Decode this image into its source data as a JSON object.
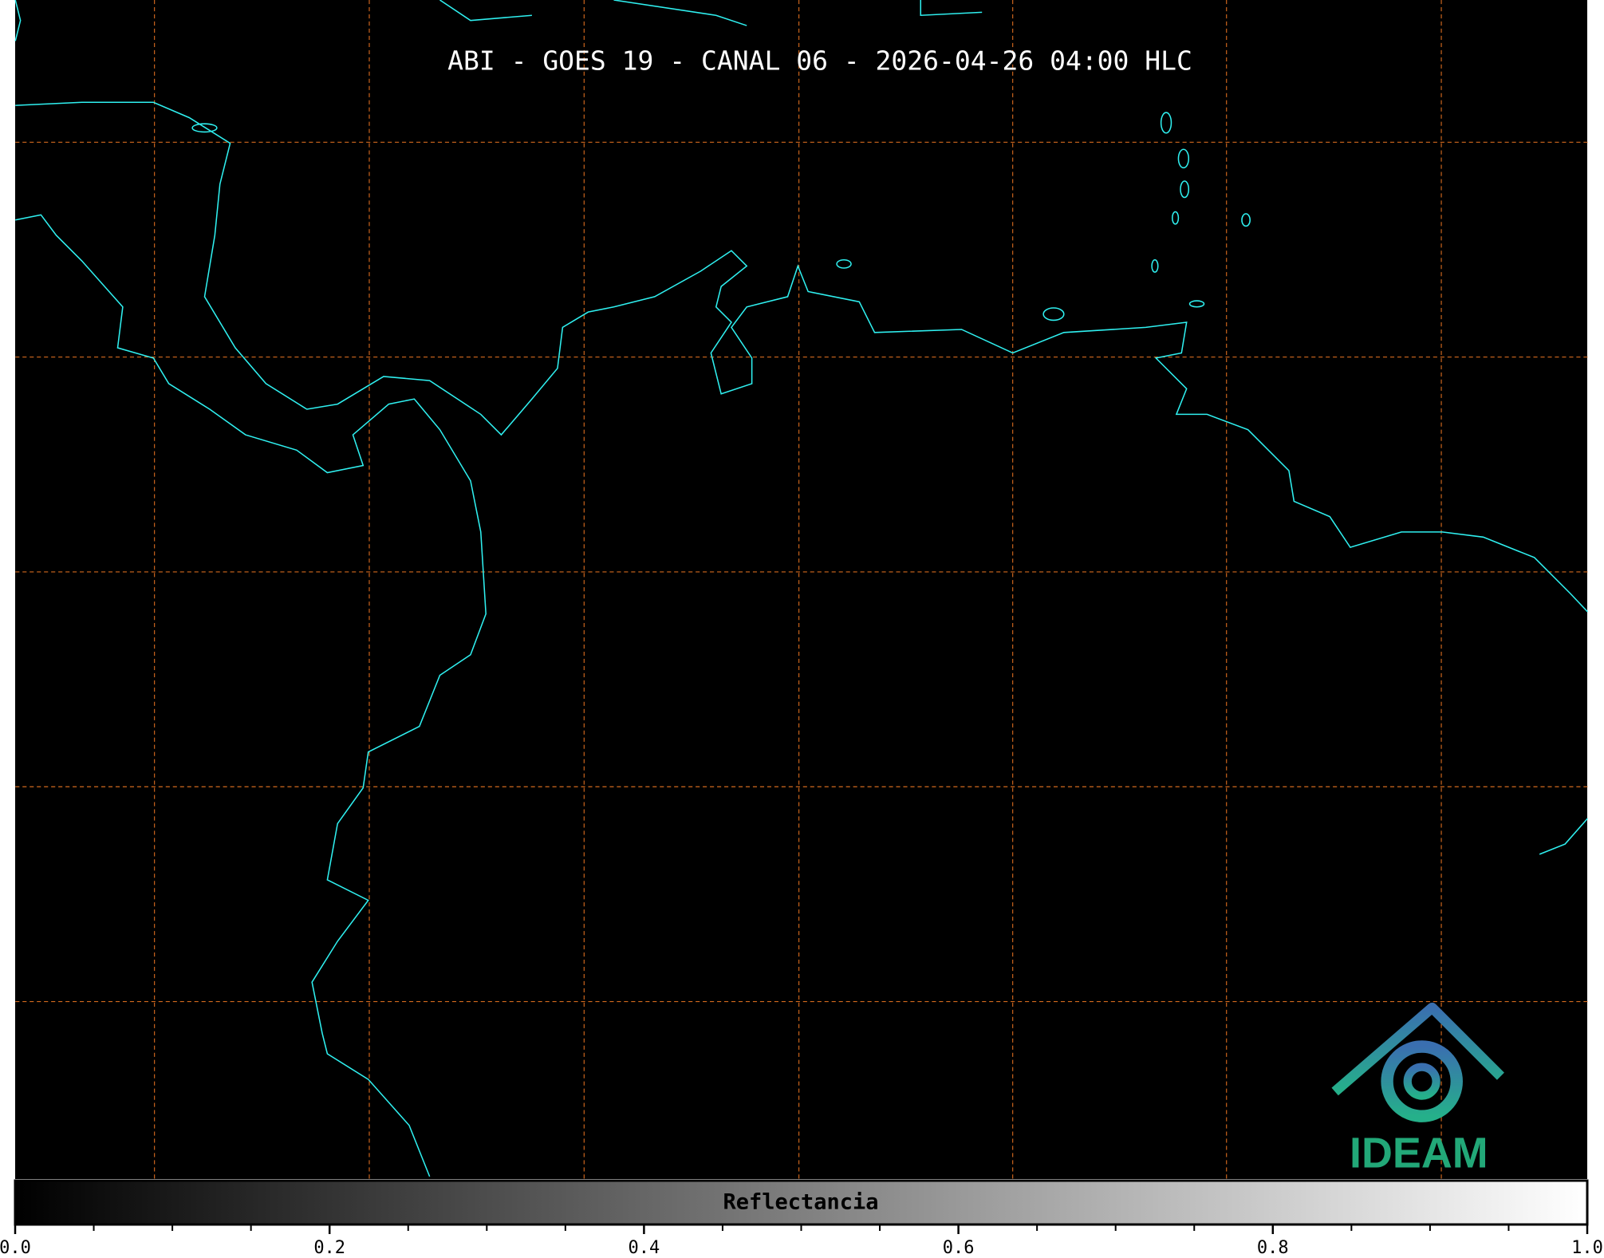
{
  "title": "ABI - GOES 19 - CANAL 06 - 2026-04-26 04:00 HLC",
  "colorbar": {
    "label": "Reflectancia",
    "lim": [
      0,
      1
    ],
    "ticks": [
      {
        "value": 0,
        "label": "0.0"
      },
      0.2,
      0.4,
      0.6,
      0.8,
      {
        "value": 1,
        "label": "1.0"
      }
    ],
    "minor_ticks": [
      0.05,
      0.1,
      0.15,
      0.25,
      0.3,
      0.35,
      0.45,
      0.5,
      0.55,
      0.65,
      0.7,
      0.75,
      0.85,
      0.9,
      0.95
    ]
  },
  "logo": {
    "text": "IDEAM"
  }
}
